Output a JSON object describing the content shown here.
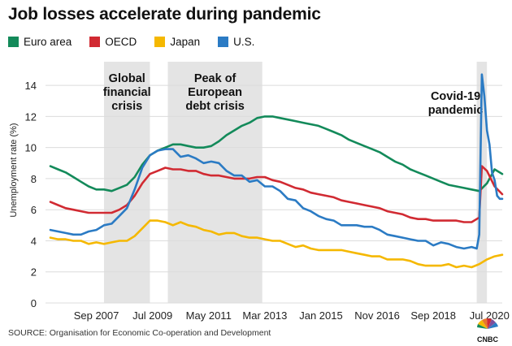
{
  "chart_data": {
    "type": "line",
    "title": "Job losses accelerate during pandemic",
    "ylabel": "Unemployment rate (%)",
    "ylim": [
      0,
      15
    ],
    "yticks": [
      0,
      2,
      4,
      6,
      8,
      10,
      12,
      14
    ],
    "xlim": [
      "2006-03",
      "2020-12"
    ],
    "xticks": [
      {
        "date": "2007-09",
        "label": "Sep 2007"
      },
      {
        "date": "2009-07",
        "label": "Jul 2009"
      },
      {
        "date": "2011-05",
        "label": "May 2011"
      },
      {
        "date": "2013-03",
        "label": "Mar 2013"
      },
      {
        "date": "2015-01",
        "label": "Jan 2015"
      },
      {
        "date": "2016-11",
        "label": "Nov 2016"
      },
      {
        "date": "2018-09",
        "label": "Sep 2018"
      },
      {
        "date": "2020-07",
        "label": "Jul 2020"
      }
    ],
    "grid": true,
    "legend_position": "top-left",
    "shaded_periods": [
      {
        "start": "2007-12",
        "end": "2009-06",
        "label": [
          "Global",
          "financial",
          "crisis"
        ]
      },
      {
        "start": "2010-01",
        "end": "2013-02",
        "label": [
          "Peak of",
          "European",
          "debt crisis"
        ]
      },
      {
        "start": "2020-02",
        "end": "2020-06",
        "label": [
          "Covid-19",
          "pandemic"
        ]
      }
    ],
    "series": [
      {
        "name": "Euro area",
        "color": "#138a5a",
        "points": [
          [
            "2006-03",
            8.8
          ],
          [
            "2006-06",
            8.6
          ],
          [
            "2006-09",
            8.4
          ],
          [
            "2006-12",
            8.1
          ],
          [
            "2007-03",
            7.8
          ],
          [
            "2007-06",
            7.5
          ],
          [
            "2007-09",
            7.3
          ],
          [
            "2007-12",
            7.3
          ],
          [
            "2008-03",
            7.2
          ],
          [
            "2008-06",
            7.4
          ],
          [
            "2008-09",
            7.6
          ],
          [
            "2008-12",
            8.1
          ],
          [
            "2009-03",
            8.9
          ],
          [
            "2009-06",
            9.5
          ],
          [
            "2009-09",
            9.8
          ],
          [
            "2009-12",
            10.0
          ],
          [
            "2010-03",
            10.2
          ],
          [
            "2010-06",
            10.2
          ],
          [
            "2010-09",
            10.1
          ],
          [
            "2010-12",
            10.0
          ],
          [
            "2011-03",
            10.0
          ],
          [
            "2011-06",
            10.1
          ],
          [
            "2011-09",
            10.4
          ],
          [
            "2011-12",
            10.8
          ],
          [
            "2012-03",
            11.1
          ],
          [
            "2012-06",
            11.4
          ],
          [
            "2012-09",
            11.6
          ],
          [
            "2012-12",
            11.9
          ],
          [
            "2013-03",
            12.0
          ],
          [
            "2013-06",
            12.0
          ],
          [
            "2013-09",
            11.9
          ],
          [
            "2013-12",
            11.8
          ],
          [
            "2014-03",
            11.7
          ],
          [
            "2014-06",
            11.6
          ],
          [
            "2014-09",
            11.5
          ],
          [
            "2014-12",
            11.4
          ],
          [
            "2015-03",
            11.2
          ],
          [
            "2015-06",
            11.0
          ],
          [
            "2015-09",
            10.8
          ],
          [
            "2015-12",
            10.5
          ],
          [
            "2016-03",
            10.3
          ],
          [
            "2016-06",
            10.1
          ],
          [
            "2016-09",
            9.9
          ],
          [
            "2016-12",
            9.7
          ],
          [
            "2017-03",
            9.4
          ],
          [
            "2017-06",
            9.1
          ],
          [
            "2017-09",
            8.9
          ],
          [
            "2017-12",
            8.6
          ],
          [
            "2018-03",
            8.4
          ],
          [
            "2018-06",
            8.2
          ],
          [
            "2018-09",
            8.0
          ],
          [
            "2018-12",
            7.8
          ],
          [
            "2019-03",
            7.6
          ],
          [
            "2019-06",
            7.5
          ],
          [
            "2019-09",
            7.4
          ],
          [
            "2019-12",
            7.3
          ],
          [
            "2020-03",
            7.2
          ],
          [
            "2020-06",
            7.7
          ],
          [
            "2020-09",
            8.6
          ],
          [
            "2020-12",
            8.3
          ]
        ]
      },
      {
        "name": "OECD",
        "color": "#d12a32",
        "points": [
          [
            "2006-03",
            6.5
          ],
          [
            "2006-06",
            6.3
          ],
          [
            "2006-09",
            6.1
          ],
          [
            "2006-12",
            6.0
          ],
          [
            "2007-03",
            5.9
          ],
          [
            "2007-06",
            5.8
          ],
          [
            "2007-09",
            5.8
          ],
          [
            "2007-12",
            5.8
          ],
          [
            "2008-03",
            5.8
          ],
          [
            "2008-06",
            6.0
          ],
          [
            "2008-09",
            6.3
          ],
          [
            "2008-12",
            6.9
          ],
          [
            "2009-03",
            7.7
          ],
          [
            "2009-06",
            8.3
          ],
          [
            "2009-09",
            8.5
          ],
          [
            "2009-12",
            8.7
          ],
          [
            "2010-03",
            8.6
          ],
          [
            "2010-06",
            8.6
          ],
          [
            "2010-09",
            8.5
          ],
          [
            "2010-12",
            8.5
          ],
          [
            "2011-03",
            8.3
          ],
          [
            "2011-06",
            8.2
          ],
          [
            "2011-09",
            8.2
          ],
          [
            "2011-12",
            8.1
          ],
          [
            "2012-03",
            8.0
          ],
          [
            "2012-06",
            8.0
          ],
          [
            "2012-09",
            8.0
          ],
          [
            "2012-12",
            8.1
          ],
          [
            "2013-03",
            8.1
          ],
          [
            "2013-06",
            7.9
          ],
          [
            "2013-09",
            7.8
          ],
          [
            "2013-12",
            7.6
          ],
          [
            "2014-03",
            7.4
          ],
          [
            "2014-06",
            7.3
          ],
          [
            "2014-09",
            7.1
          ],
          [
            "2014-12",
            7.0
          ],
          [
            "2015-03",
            6.9
          ],
          [
            "2015-06",
            6.8
          ],
          [
            "2015-09",
            6.6
          ],
          [
            "2015-12",
            6.5
          ],
          [
            "2016-03",
            6.4
          ],
          [
            "2016-06",
            6.3
          ],
          [
            "2016-09",
            6.2
          ],
          [
            "2016-12",
            6.1
          ],
          [
            "2017-03",
            5.9
          ],
          [
            "2017-06",
            5.8
          ],
          [
            "2017-09",
            5.7
          ],
          [
            "2017-12",
            5.5
          ],
          [
            "2018-03",
            5.4
          ],
          [
            "2018-06",
            5.4
          ],
          [
            "2018-09",
            5.3
          ],
          [
            "2018-12",
            5.3
          ],
          [
            "2019-03",
            5.3
          ],
          [
            "2019-06",
            5.3
          ],
          [
            "2019-09",
            5.2
          ],
          [
            "2019-12",
            5.2
          ],
          [
            "2020-03",
            5.5
          ],
          [
            "2020-04",
            8.8
          ],
          [
            "2020-06",
            8.5
          ],
          [
            "2020-09",
            7.5
          ],
          [
            "2020-12",
            7.0
          ]
        ]
      },
      {
        "name": "Japan",
        "color": "#f5b800",
        "points": [
          [
            "2006-03",
            4.2
          ],
          [
            "2006-06",
            4.1
          ],
          [
            "2006-09",
            4.1
          ],
          [
            "2006-12",
            4.0
          ],
          [
            "2007-03",
            4.0
          ],
          [
            "2007-06",
            3.8
          ],
          [
            "2007-09",
            3.9
          ],
          [
            "2007-12",
            3.8
          ],
          [
            "2008-03",
            3.9
          ],
          [
            "2008-06",
            4.0
          ],
          [
            "2008-09",
            4.0
          ],
          [
            "2008-12",
            4.3
          ],
          [
            "2009-03",
            4.8
          ],
          [
            "2009-06",
            5.3
          ],
          [
            "2009-09",
            5.3
          ],
          [
            "2009-12",
            5.2
          ],
          [
            "2010-03",
            5.0
          ],
          [
            "2010-06",
            5.2
          ],
          [
            "2010-09",
            5.0
          ],
          [
            "2010-12",
            4.9
          ],
          [
            "2011-03",
            4.7
          ],
          [
            "2011-06",
            4.6
          ],
          [
            "2011-09",
            4.4
          ],
          [
            "2011-12",
            4.5
          ],
          [
            "2012-03",
            4.5
          ],
          [
            "2012-06",
            4.3
          ],
          [
            "2012-09",
            4.2
          ],
          [
            "2012-12",
            4.2
          ],
          [
            "2013-03",
            4.1
          ],
          [
            "2013-06",
            4.0
          ],
          [
            "2013-09",
            4.0
          ],
          [
            "2013-12",
            3.8
          ],
          [
            "2014-03",
            3.6
          ],
          [
            "2014-06",
            3.7
          ],
          [
            "2014-09",
            3.5
          ],
          [
            "2014-12",
            3.4
          ],
          [
            "2015-03",
            3.4
          ],
          [
            "2015-06",
            3.4
          ],
          [
            "2015-09",
            3.4
          ],
          [
            "2015-12",
            3.3
          ],
          [
            "2016-03",
            3.2
          ],
          [
            "2016-06",
            3.1
          ],
          [
            "2016-09",
            3.0
          ],
          [
            "2016-12",
            3.0
          ],
          [
            "2017-03",
            2.8
          ],
          [
            "2017-06",
            2.8
          ],
          [
            "2017-09",
            2.8
          ],
          [
            "2017-12",
            2.7
          ],
          [
            "2018-03",
            2.5
          ],
          [
            "2018-06",
            2.4
          ],
          [
            "2018-09",
            2.4
          ],
          [
            "2018-12",
            2.4
          ],
          [
            "2019-03",
            2.5
          ],
          [
            "2019-06",
            2.3
          ],
          [
            "2019-09",
            2.4
          ],
          [
            "2019-12",
            2.3
          ],
          [
            "2020-03",
            2.5
          ],
          [
            "2020-06",
            2.8
          ],
          [
            "2020-09",
            3.0
          ],
          [
            "2020-12",
            3.1
          ]
        ]
      },
      {
        "name": "U.S.",
        "color": "#2b7bc4",
        "points": [
          [
            "2006-03",
            4.7
          ],
          [
            "2006-06",
            4.6
          ],
          [
            "2006-09",
            4.5
          ],
          [
            "2006-12",
            4.4
          ],
          [
            "2007-03",
            4.4
          ],
          [
            "2007-06",
            4.6
          ],
          [
            "2007-09",
            4.7
          ],
          [
            "2007-12",
            5.0
          ],
          [
            "2008-03",
            5.1
          ],
          [
            "2008-06",
            5.6
          ],
          [
            "2008-09",
            6.1
          ],
          [
            "2008-12",
            7.3
          ],
          [
            "2009-03",
            8.7
          ],
          [
            "2009-06",
            9.5
          ],
          [
            "2009-09",
            9.8
          ],
          [
            "2009-12",
            9.9
          ],
          [
            "2010-03",
            9.9
          ],
          [
            "2010-06",
            9.4
          ],
          [
            "2010-09",
            9.5
          ],
          [
            "2010-12",
            9.3
          ],
          [
            "2011-03",
            9.0
          ],
          [
            "2011-06",
            9.1
          ],
          [
            "2011-09",
            9.0
          ],
          [
            "2011-12",
            8.5
          ],
          [
            "2012-03",
            8.2
          ],
          [
            "2012-06",
            8.2
          ],
          [
            "2012-09",
            7.8
          ],
          [
            "2012-12",
            7.9
          ],
          [
            "2013-03",
            7.5
          ],
          [
            "2013-06",
            7.5
          ],
          [
            "2013-09",
            7.2
          ],
          [
            "2013-12",
            6.7
          ],
          [
            "2014-03",
            6.6
          ],
          [
            "2014-06",
            6.1
          ],
          [
            "2014-09",
            5.9
          ],
          [
            "2014-12",
            5.6
          ],
          [
            "2015-03",
            5.4
          ],
          [
            "2015-06",
            5.3
          ],
          [
            "2015-09",
            5.0
          ],
          [
            "2015-12",
            5.0
          ],
          [
            "2016-03",
            5.0
          ],
          [
            "2016-06",
            4.9
          ],
          [
            "2016-09",
            4.9
          ],
          [
            "2016-12",
            4.7
          ],
          [
            "2017-03",
            4.4
          ],
          [
            "2017-06",
            4.3
          ],
          [
            "2017-09",
            4.2
          ],
          [
            "2017-12",
            4.1
          ],
          [
            "2018-03",
            4.0
          ],
          [
            "2018-06",
            4.0
          ],
          [
            "2018-09",
            3.7
          ],
          [
            "2018-12",
            3.9
          ],
          [
            "2019-03",
            3.8
          ],
          [
            "2019-06",
            3.6
          ],
          [
            "2019-09",
            3.5
          ],
          [
            "2019-12",
            3.6
          ],
          [
            "2020-02",
            3.5
          ],
          [
            "2020-03",
            4.4
          ],
          [
            "2020-04",
            14.7
          ],
          [
            "2020-05",
            13.3
          ],
          [
            "2020-06",
            11.1
          ],
          [
            "2020-07",
            10.2
          ],
          [
            "2020-08",
            8.4
          ],
          [
            "2020-09",
            7.9
          ],
          [
            "2020-10",
            6.9
          ],
          [
            "2020-11",
            6.7
          ],
          [
            "2020-12",
            6.7
          ]
        ]
      }
    ]
  },
  "source": "SOURCE: Organisation for Economic Co-operation and Development",
  "logo_text": "CNBC"
}
